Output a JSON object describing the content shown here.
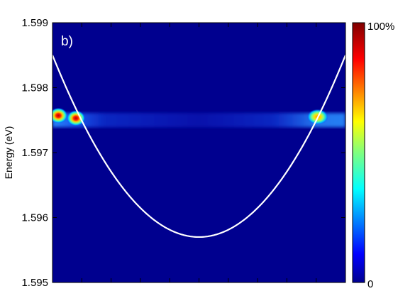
{
  "chart_data": {
    "type": "heatmap",
    "panel_label": "b)",
    "ylabel": "Energy (eV)",
    "xlabel": "",
    "ylim": [
      1.595,
      1.599
    ],
    "xlim": [
      -1,
      1
    ],
    "y_ticks": [
      "1.595",
      "1.596",
      "1.597",
      "1.598",
      "1.599"
    ],
    "y_tick_values": [
      1.595,
      1.596,
      1.597,
      1.598,
      1.599
    ],
    "x_tick_count": 10,
    "colorbar": {
      "max_label": "100%",
      "min_label": "0",
      "colormap": "jet"
    },
    "background_color": "#00008f",
    "overlay_curve": {
      "type": "parabola",
      "vertex_x": 0,
      "vertex_energy": 1.5957,
      "edge_energy": 1.5985,
      "color": "#ffffff"
    },
    "emission_band": {
      "center_energy": 1.5975,
      "hotspots": [
        {
          "x": -0.96,
          "energy": 1.59757,
          "intensity": 1.0
        },
        {
          "x": -0.84,
          "energy": 1.59753,
          "intensity": 0.95
        },
        {
          "x": 0.81,
          "energy": 1.59755,
          "intensity": 0.7
        }
      ]
    }
  }
}
